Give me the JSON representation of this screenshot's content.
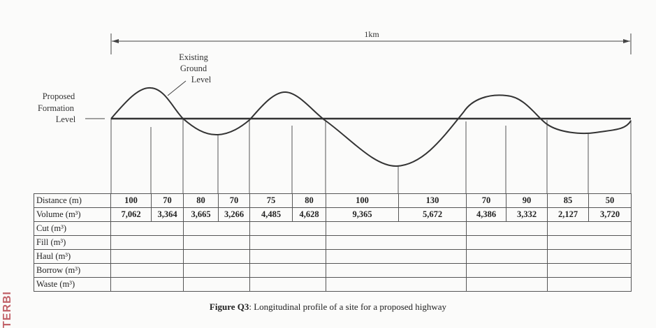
{
  "figure": {
    "span_label": "1km",
    "existing_ground_label": [
      "Existing",
      "Ground",
      "Level"
    ],
    "formation_label": [
      "Proposed",
      "Formation",
      "Level"
    ]
  },
  "table": {
    "row_labels": [
      "Distance (m)",
      "Volume (m³)",
      "Cut (m³)",
      "Fill (m³)",
      "Haul (m³)",
      "Borrow (m³)",
      "Waste (m³)"
    ],
    "distances": [
      "100",
      "70",
      "80",
      "70",
      "75",
      "80",
      "100",
      "130",
      "70",
      "90",
      "85",
      "50"
    ],
    "volumes": [
      "7,062",
      "3,364",
      "3,665",
      "3,266",
      "4,485",
      "4,628",
      "9,365",
      "5,672",
      "4,386",
      "3,332",
      "2,127",
      "3,720"
    ]
  },
  "caption": {
    "number": "Figure Q3",
    "text": ": Longitudinal profile of a site for a proposed highway"
  },
  "stamp_text": "TERBI"
}
